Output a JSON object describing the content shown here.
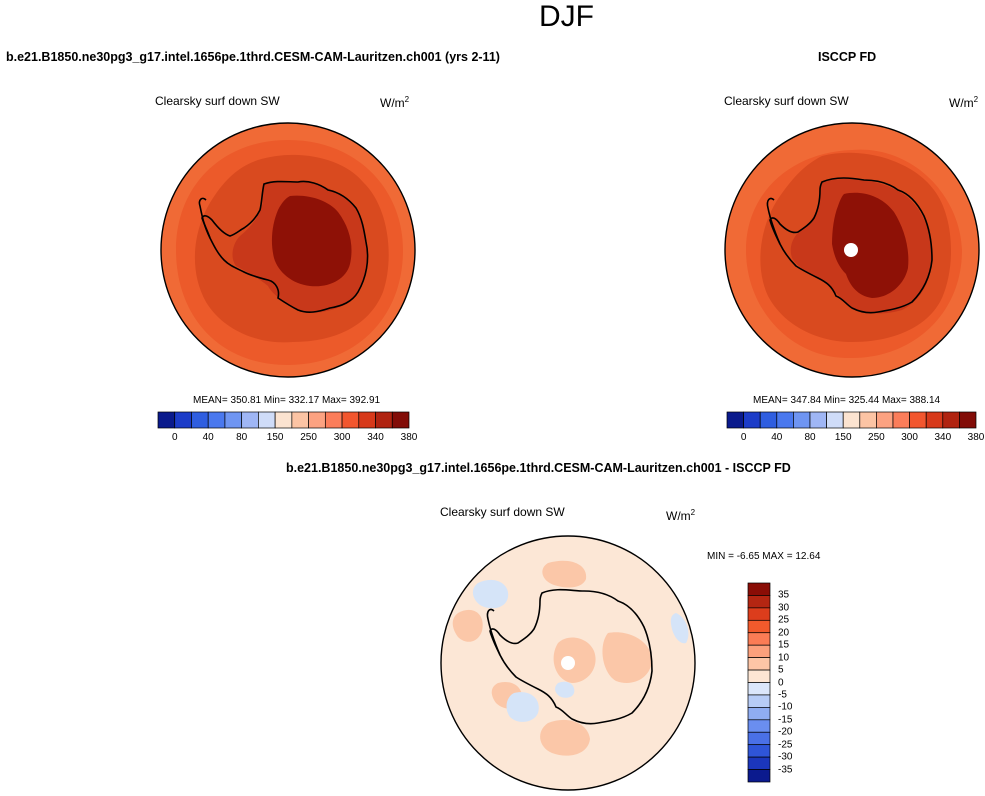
{
  "figure_title": "DJF",
  "panel_left": {
    "case_title": "b.e21.B1850.ne30pg3_g17.intel.1656pe.1thrd.CESM-CAM-Lauritzen.ch001 (yrs 2-11)",
    "variable": "Clearsky surf down SW",
    "units_base": "W/m",
    "units_exp": "2",
    "stats": "MEAN= 350.81  Min= 332.17  Max= 392.91"
  },
  "panel_right": {
    "case_title": "ISCCP FD",
    "variable": "Clearsky surf down SW",
    "units_base": "W/m",
    "units_exp": "2",
    "stats": "MEAN= 347.84  Min= 325.44  Max= 388.14"
  },
  "panel_diff": {
    "case_title": "b.e21.B1850.ne30pg3_g17.intel.1656pe.1thrd.CESM-CAM-Lauritzen.ch001 - ISCCP FD",
    "variable": "Clearsky surf down SW",
    "units_base": "W/m",
    "units_exp": "2",
    "stats": "MIN =  -6.65 MAX =  12.64"
  },
  "colorbar_abs": {
    "colors": [
      "#0a1a8c",
      "#1c3cc8",
      "#2f5ee0",
      "#4a78ee",
      "#6f95f2",
      "#9fb6f5",
      "#cfdcf8",
      "#fbe3d0",
      "#fcc4a4",
      "#fca281",
      "#fb7d5a",
      "#f2562e",
      "#d7391a",
      "#b02310",
      "#820c07"
    ],
    "tick_labels": [
      "0",
      "40",
      "80",
      "150",
      "250",
      "300",
      "340",
      "380"
    ]
  },
  "colorbar_diff": {
    "colors": [
      "#8a0d06",
      "#b42612",
      "#dc3d1c",
      "#f25a2c",
      "#fb7c55",
      "#fca07c",
      "#fdc5a6",
      "#fde6d4",
      "#dbe6fa",
      "#b7ccf6",
      "#8fadf2",
      "#6a8ef0",
      "#4a70e6",
      "#2f55d8",
      "#1b36bc",
      "#0b1a8e"
    ],
    "tick_labels": [
      "35",
      "30",
      "25",
      "20",
      "15",
      "10",
      "5",
      "0",
      "-5",
      "-10",
      "-15",
      "-20",
      "-25",
      "-30",
      "-35"
    ]
  },
  "map_colors": {
    "ocean_abs": "#ec5a2a",
    "ring_abs": "#f06a36",
    "coast_abs": "#d94a1f",
    "ice_abs": "#c8381a",
    "plateau_abs": "#8e1106",
    "diff_bg": "#fce7d6",
    "diff_pos": "#fbc7a8",
    "diff_neg": "#d5e4f8",
    "missing": "#ffffff"
  }
}
